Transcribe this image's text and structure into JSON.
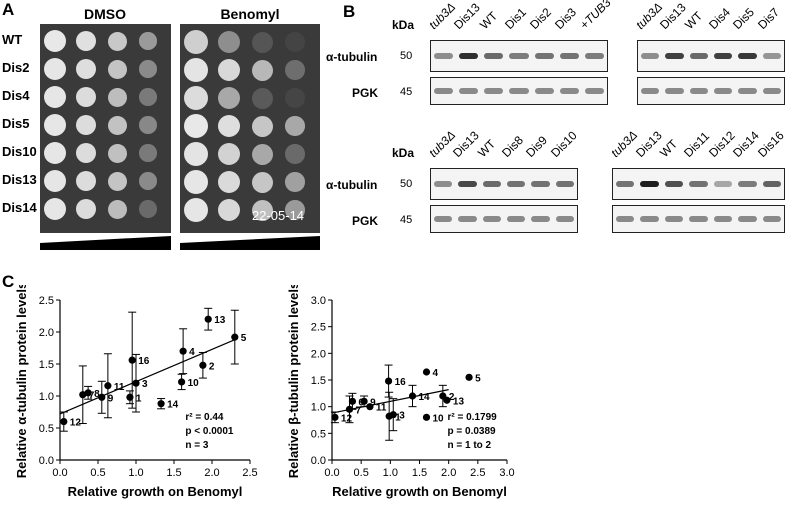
{
  "panelA": {
    "letter": "A",
    "headers": [
      "DMSO",
      "Benomyl"
    ],
    "strains": [
      "WT",
      "Dis2",
      "Dis4",
      "Dis5",
      "Dis10",
      "Dis13",
      "Dis14"
    ],
    "date_stamp": "22-05-14"
  },
  "panelB": {
    "letter": "B",
    "kda_label": "kDa",
    "row_labels": [
      "α-tubulin",
      "PGK"
    ],
    "kda_values": [
      "50",
      "45"
    ],
    "blots": [
      {
        "lanes": [
          "tub3Δ",
          "Dis13",
          "WT",
          "Dis1",
          "Dis2",
          "Dis3",
          "+TUB3"
        ]
      },
      {
        "lanes": [
          "tub3Δ",
          "Dis13",
          "WT",
          "Dis4",
          "Dis5",
          "Dis7"
        ]
      },
      {
        "lanes": [
          "tub3Δ",
          "Dis13",
          "WT",
          "Dis8",
          "Dis9",
          "Dis10"
        ]
      },
      {
        "lanes": [
          "tub3Δ",
          "Dis13",
          "WT",
          "Dis11",
          "Dis12",
          "Dis14",
          "Dis16"
        ]
      }
    ]
  },
  "panelC": {
    "letter": "C",
    "colors": {
      "points": "#000000",
      "line": "#000000"
    }
  },
  "chart_data": [
    {
      "type": "scatter",
      "xlabel": "Relative growth on Benomyl",
      "ylabel": "Relative α-tubulin protein levels",
      "xlim": [
        0,
        2.5
      ],
      "ylim": [
        0,
        2.5
      ],
      "xticks": [
        "0.0",
        "0.5",
        "1.0",
        "1.5",
        "2.0",
        "2.5"
      ],
      "yticks": [
        "0.0",
        "0.5",
        "1.0",
        "1.5",
        "2.0",
        "2.5"
      ],
      "points": [
        {
          "label": "12",
          "x": 0.05,
          "y": 0.6,
          "yerr": 0.15
        },
        {
          "label": "7",
          "x": 0.3,
          "y": 1.02,
          "yerr": 0.45
        },
        {
          "label": "8",
          "x": 0.37,
          "y": 1.05,
          "yerr": 0.1
        },
        {
          "label": "9",
          "x": 0.55,
          "y": 0.98,
          "yerr": 0.25
        },
        {
          "label": "11",
          "x": 0.63,
          "y": 1.16,
          "yerr": 0.5
        },
        {
          "label": "1",
          "x": 0.92,
          "y": 0.98,
          "yerr": 0.1
        },
        {
          "label": "16",
          "x": 0.95,
          "y": 1.56,
          "yerr": 0.75
        },
        {
          "label": "3",
          "x": 1.0,
          "y": 1.2,
          "yerr": 0.45
        },
        {
          "label": "14",
          "x": 1.33,
          "y": 0.88,
          "yerr": 0.08
        },
        {
          "label": "10",
          "x": 1.6,
          "y": 1.22,
          "yerr": 0.12
        },
        {
          "label": "4",
          "x": 1.62,
          "y": 1.7,
          "yerr": 0.35
        },
        {
          "label": "2",
          "x": 1.88,
          "y": 1.48,
          "yerr": 0.2
        },
        {
          "label": "13",
          "x": 1.95,
          "y": 2.2,
          "yerr": 0.17
        },
        {
          "label": "5",
          "x": 2.3,
          "y": 1.92,
          "yerr": 0.42
        }
      ],
      "fit": {
        "x": [
          0.0,
          2.3
        ],
        "y": [
          0.72,
          1.88
        ]
      },
      "annotations": [
        "r² = 0.44",
        "p < 0.0001",
        "n = 3"
      ]
    },
    {
      "type": "scatter",
      "xlabel": "Relative growth on Benomyl",
      "ylabel": "Relative β-tubulin protein levels",
      "xlim": [
        0,
        3.0
      ],
      "ylim": [
        0,
        3.0
      ],
      "xticks": [
        "0.0",
        "0.5",
        "1.0",
        "1.5",
        "2.0",
        "2.5",
        "3.0"
      ],
      "yticks": [
        "0.0",
        "0.5",
        "1.0",
        "1.5",
        "2.0",
        "2.5",
        "3.0"
      ],
      "points": [
        {
          "label": "12",
          "x": 0.05,
          "y": 0.8,
          "yerr": 0.1
        },
        {
          "label": "7",
          "x": 0.3,
          "y": 0.95,
          "yerr": 0.25
        },
        {
          "label": "6",
          "x": 0.35,
          "y": 1.1,
          "yerr": 0.15
        },
        {
          "label": "9",
          "x": 0.55,
          "y": 1.1,
          "yerr": 0.1
        },
        {
          "label": "11",
          "x": 0.65,
          "y": 1.0,
          "yerr": 0.0
        },
        {
          "label": "16",
          "x": 0.97,
          "y": 1.48,
          "yerr": 0.3
        },
        {
          "label": "1",
          "x": 0.98,
          "y": 0.82,
          "yerr": 0.45
        },
        {
          "label": "3",
          "x": 1.05,
          "y": 0.85,
          "yerr": 0.3
        },
        {
          "label": "14",
          "x": 1.38,
          "y": 1.2,
          "yerr": 0.2
        },
        {
          "label": "4",
          "x": 1.62,
          "y": 1.65,
          "yerr": 0.0
        },
        {
          "label": "10",
          "x": 1.62,
          "y": 0.8,
          "yerr": 0.0
        },
        {
          "label": "2",
          "x": 1.9,
          "y": 1.2,
          "yerr": 0.2
        },
        {
          "label": "13",
          "x": 1.97,
          "y": 1.12,
          "yerr": 0.0
        },
        {
          "label": "5",
          "x": 2.35,
          "y": 1.55,
          "yerr": 0.0
        }
      ],
      "fit": {
        "x": [
          0.0,
          2.0
        ],
        "y": [
          0.88,
          1.32
        ]
      },
      "annotations": [
        "r² = 0.1799",
        "p = 0.0389",
        "n = 1 to 2"
      ]
    }
  ]
}
